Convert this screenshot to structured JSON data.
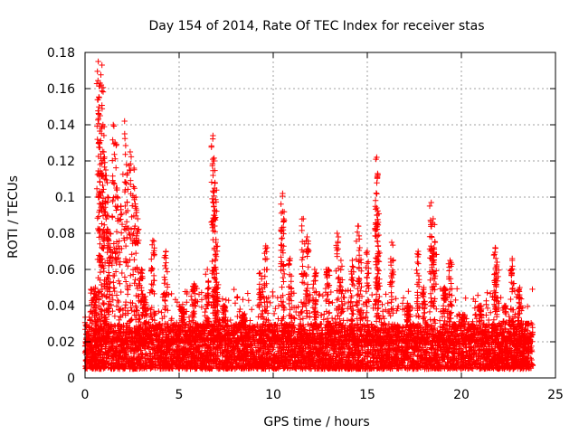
{
  "chart_data": {
    "type": "scatter",
    "title": "Day 154 of 2014, Rate Of TEC Index for receiver stas",
    "xlabel": "GPS time / hours",
    "ylabel": "ROTI / TECUs",
    "xlim": [
      0,
      25
    ],
    "ylim": [
      0,
      0.18
    ],
    "xticks": [
      0,
      5,
      10,
      15,
      20,
      25
    ],
    "xtick_labels": [
      "0",
      "5",
      "10",
      "15",
      "20",
      "25"
    ],
    "yticks": [
      0,
      0.02,
      0.04,
      0.06,
      0.08,
      0.1,
      0.12,
      0.14,
      0.16,
      0.18
    ],
    "ytick_labels": [
      "0",
      "0.02",
      "0.04",
      "0.06",
      "0.08",
      "0.1",
      "0.12",
      "0.14",
      "0.16",
      "0.18"
    ],
    "grid": true,
    "marker": "+",
    "color": "#ff0000",
    "data_extent_hours": [
      0,
      23.8
    ],
    "baseline_range": [
      0.005,
      0.03
    ],
    "peaks": [
      {
        "x": 0.35,
        "y": 0.049
      },
      {
        "x": 0.55,
        "y": 0.05
      },
      {
        "x": 0.7,
        "y": 0.175
      },
      {
        "x": 0.75,
        "y": 0.155
      },
      {
        "x": 0.8,
        "y": 0.163
      },
      {
        "x": 0.9,
        "y": 0.173
      },
      {
        "x": 0.8,
        "y": 0.145
      },
      {
        "x": 0.95,
        "y": 0.14
      },
      {
        "x": 1.0,
        "y": 0.125
      },
      {
        "x": 1.1,
        "y": 0.115
      },
      {
        "x": 1.2,
        "y": 0.1
      },
      {
        "x": 1.3,
        "y": 0.08
      },
      {
        "x": 1.5,
        "y": 0.14
      },
      {
        "x": 1.6,
        "y": 0.13
      },
      {
        "x": 1.7,
        "y": 0.105
      },
      {
        "x": 1.9,
        "y": 0.095
      },
      {
        "x": 2.1,
        "y": 0.142
      },
      {
        "x": 2.2,
        "y": 0.118
      },
      {
        "x": 2.4,
        "y": 0.125
      },
      {
        "x": 2.6,
        "y": 0.116
      },
      {
        "x": 2.7,
        "y": 0.1
      },
      {
        "x": 2.8,
        "y": 0.088
      },
      {
        "x": 3.0,
        "y": 0.06
      },
      {
        "x": 3.2,
        "y": 0.045
      },
      {
        "x": 3.6,
        "y": 0.076
      },
      {
        "x": 4.3,
        "y": 0.07
      },
      {
        "x": 5.2,
        "y": 0.038
      },
      {
        "x": 5.8,
        "y": 0.052
      },
      {
        "x": 6.5,
        "y": 0.06
      },
      {
        "x": 6.8,
        "y": 0.134
      },
      {
        "x": 6.85,
        "y": 0.12
      },
      {
        "x": 6.9,
        "y": 0.108
      },
      {
        "x": 6.95,
        "y": 0.075
      },
      {
        "x": 7.0,
        "y": 0.053
      },
      {
        "x": 7.4,
        "y": 0.04
      },
      {
        "x": 8.4,
        "y": 0.035
      },
      {
        "x": 9.3,
        "y": 0.058
      },
      {
        "x": 9.6,
        "y": 0.073
      },
      {
        "x": 10.5,
        "y": 0.102
      },
      {
        "x": 10.5,
        "y": 0.092
      },
      {
        "x": 10.9,
        "y": 0.066
      },
      {
        "x": 11.6,
        "y": 0.088
      },
      {
        "x": 11.8,
        "y": 0.078
      },
      {
        "x": 12.2,
        "y": 0.06
      },
      {
        "x": 12.9,
        "y": 0.06
      },
      {
        "x": 13.4,
        "y": 0.08
      },
      {
        "x": 13.6,
        "y": 0.065
      },
      {
        "x": 14.2,
        "y": 0.065
      },
      {
        "x": 14.5,
        "y": 0.084
      },
      {
        "x": 14.6,
        "y": 0.072
      },
      {
        "x": 15.0,
        "y": 0.07
      },
      {
        "x": 15.5,
        "y": 0.122
      },
      {
        "x": 15.55,
        "y": 0.113
      },
      {
        "x": 15.5,
        "y": 0.094
      },
      {
        "x": 15.6,
        "y": 0.07
      },
      {
        "x": 16.3,
        "y": 0.075
      },
      {
        "x": 17.2,
        "y": 0.04
      },
      {
        "x": 17.7,
        "y": 0.07
      },
      {
        "x": 18.0,
        "y": 0.05
      },
      {
        "x": 18.4,
        "y": 0.097
      },
      {
        "x": 18.5,
        "y": 0.088
      },
      {
        "x": 18.6,
        "y": 0.075
      },
      {
        "x": 19.1,
        "y": 0.05
      },
      {
        "x": 19.4,
        "y": 0.065
      },
      {
        "x": 20.1,
        "y": 0.035
      },
      {
        "x": 21.0,
        "y": 0.04
      },
      {
        "x": 21.8,
        "y": 0.072
      },
      {
        "x": 21.9,
        "y": 0.064
      },
      {
        "x": 22.3,
        "y": 0.04
      },
      {
        "x": 22.7,
        "y": 0.066
      },
      {
        "x": 23.1,
        "y": 0.05
      },
      {
        "x": 23.5,
        "y": 0.03
      }
    ]
  }
}
